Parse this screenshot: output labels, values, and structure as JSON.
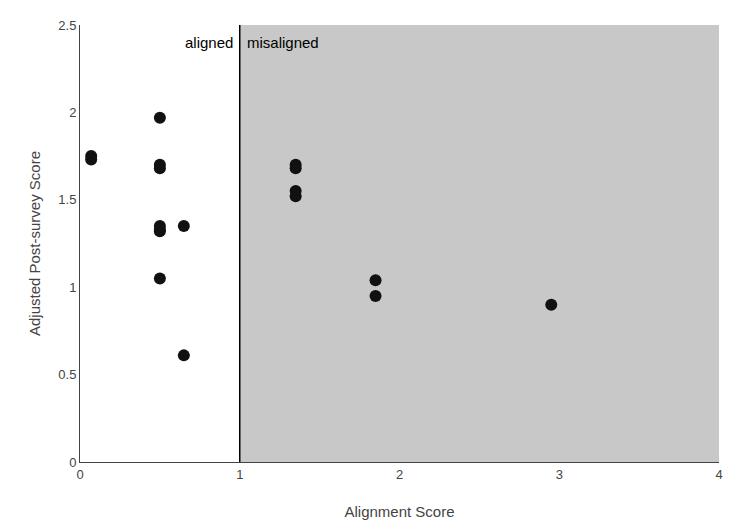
{
  "chart_data": {
    "type": "scatter",
    "xlabel": "Alignment Score",
    "ylabel": "Adjusted Post-survey Score",
    "series": [
      {
        "color": "#111111",
        "x": [
          0.07,
          0.07,
          0.5,
          0.5,
          0.5,
          0.5,
          0.5,
          0.5,
          0.5,
          0.65,
          0.65
        ],
        "values": [
          1.75,
          1.73,
          1.97,
          1.68,
          1.7,
          1.35,
          1.32,
          1.33,
          1.05,
          0.61,
          1.35
        ]
      },
      {
        "color": "#111111",
        "x": [
          1.35,
          1.35,
          1.35,
          1.35,
          1.85,
          1.85,
          2.95
        ],
        "values": [
          1.68,
          1.7,
          1.55,
          1.52,
          1.04,
          0.95,
          0.9
        ]
      }
    ],
    "regions": [
      {
        "label": "aligned",
        "from": 0,
        "to": 1,
        "color": "#ffffff"
      },
      {
        "label": "misaligned",
        "from": 1,
        "to": 4,
        "color": "#c8c8c8"
      }
    ],
    "xlim": [
      0,
      4
    ],
    "ylim": [
      0,
      2.5
    ],
    "xticks": [
      0,
      1,
      2,
      3,
      4
    ],
    "yticks": [
      0,
      0.5,
      1,
      1.5,
      2,
      2.5
    ],
    "grid": false
  }
}
